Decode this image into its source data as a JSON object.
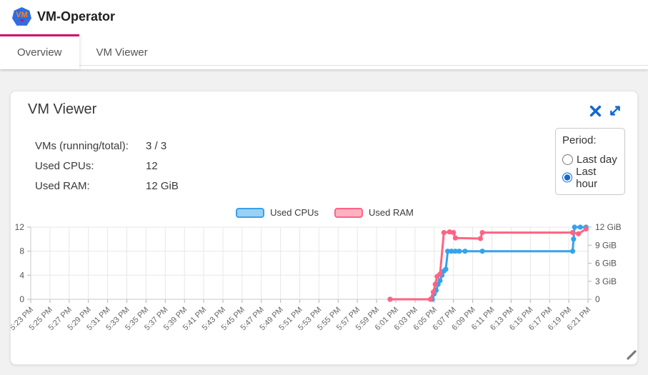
{
  "app": {
    "title": "VM-Operator",
    "logo_text": "VM"
  },
  "tabs": [
    {
      "label": "Overview",
      "active": true
    },
    {
      "label": "VM Viewer",
      "active": false
    }
  ],
  "card": {
    "title": "VM Viewer",
    "stats": [
      {
        "label": "VMs (running/total):",
        "value": "3 / 3"
      },
      {
        "label": "Used CPUs:",
        "value": "12"
      },
      {
        "label": "Used RAM:",
        "value": "12 GiB"
      }
    ],
    "period": {
      "label": "Period:",
      "options": [
        {
          "label": "Last day",
          "selected": false
        },
        {
          "label": "Last hour",
          "selected": true
        }
      ]
    }
  },
  "colors": {
    "accent_blue": "#1468d0",
    "tab_indicator": "#d00f6e",
    "cpu_line": "#36A2EB",
    "cpu_fill": "#9BD0F5",
    "ram_line": "#FF6384",
    "ram_fill": "#FFB1C1"
  },
  "icons": {
    "close": "close-icon",
    "expand": "expand-icon",
    "resize": "resize-handle-icon",
    "logo": "vm-operator-logo-icon"
  },
  "chart_data": {
    "type": "line",
    "title": "",
    "legend_position": "top",
    "grid": true,
    "x_ticks": [
      "5:23 PM",
      "5:25 PM",
      "5:27 PM",
      "5:29 PM",
      "5:31 PM",
      "5:33 PM",
      "5:35 PM",
      "5:37 PM",
      "5:39 PM",
      "5:41 PM",
      "5:43 PM",
      "5:45 PM",
      "5:47 PM",
      "5:49 PM",
      "5:51 PM",
      "5:53 PM",
      "5:55 PM",
      "5:57 PM",
      "5:59 PM",
      "6:01 PM",
      "6:03 PM",
      "6:05 PM",
      "6:07 PM",
      "6:09 PM",
      "6:11 PM",
      "6:13 PM",
      "6:15 PM",
      "6:17 PM",
      "6:19 PM",
      "6:21 PM"
    ],
    "y_left": {
      "label": "",
      "ticks": [
        0,
        4,
        8,
        12
      ],
      "min": 0,
      "max": 12
    },
    "y_right": {
      "label": "",
      "ticks": [
        {
          "value": 0,
          "label": "0"
        },
        {
          "value": 3,
          "label": "3 GiB"
        },
        {
          "value": 6,
          "label": "6 GiB"
        },
        {
          "value": 9,
          "label": "9 GiB"
        },
        {
          "value": 12,
          "label": "12 GiB"
        }
      ],
      "min": 0,
      "max": 12
    },
    "series": [
      {
        "name": "Used CPUs",
        "axis": "left",
        "color": "#36A2EB",
        "fill": "#9BD0F5",
        "points": [
          [
            18.7,
            0
          ],
          [
            20.9,
            0
          ],
          [
            21.0,
            0.9
          ],
          [
            21.1,
            1.5
          ],
          [
            21.2,
            2.5
          ],
          [
            21.3,
            3.1
          ],
          [
            21.4,
            4.0
          ],
          [
            21.5,
            4.7
          ],
          [
            21.6,
            5.0
          ],
          [
            21.7,
            8
          ],
          [
            21.9,
            8
          ],
          [
            22.1,
            8
          ],
          [
            22.3,
            8
          ],
          [
            22.6,
            8
          ],
          [
            23.5,
            8
          ],
          [
            28.2,
            8
          ],
          [
            28.25,
            10
          ],
          [
            28.3,
            12
          ],
          [
            28.6,
            12
          ],
          [
            28.9,
            12
          ]
        ]
      },
      {
        "name": "Used RAM",
        "axis": "right",
        "color": "#FF6384",
        "fill": "#FFB1C1",
        "points": [
          [
            18.7,
            0
          ],
          [
            20.8,
            0
          ],
          [
            20.95,
            1.2
          ],
          [
            21.05,
            2.5
          ],
          [
            21.15,
            3.8
          ],
          [
            21.3,
            4.2
          ],
          [
            21.5,
            11.1
          ],
          [
            21.8,
            11.2
          ],
          [
            22.0,
            11.1
          ],
          [
            22.1,
            10.2
          ],
          [
            23.4,
            10.1
          ],
          [
            23.5,
            11.1
          ],
          [
            28.2,
            11.1
          ],
          [
            28.5,
            10.9
          ],
          [
            28.9,
            11.7
          ]
        ]
      }
    ]
  }
}
